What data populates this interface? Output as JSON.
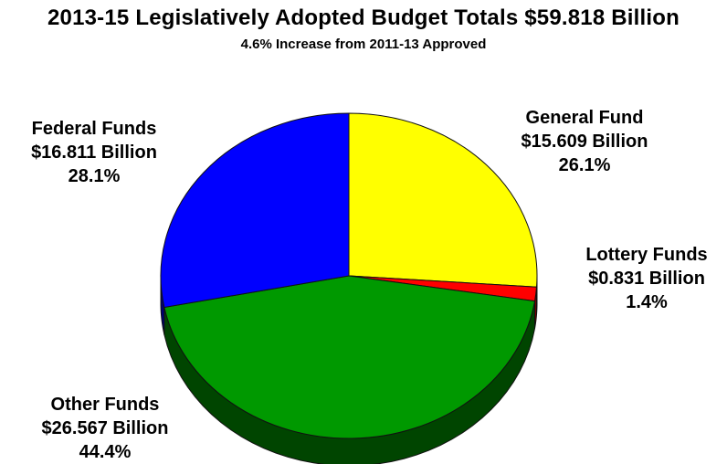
{
  "title": "2013-15 Legislatively Adopted Budget Totals $59.818 Billion",
  "subtitle": "4.6% Increase from 2011-13 Approved",
  "chart_data": {
    "type": "pie",
    "title": "2013-15 Legislatively Adopted Budget Totals $59.818 Billion",
    "subtitle": "4.6% Increase from 2011-13 Approved",
    "slices": [
      {
        "name": "General Fund",
        "amount": "$15.609 Billion",
        "value": 15.609,
        "percent": "26.1%",
        "color": "#ffff00"
      },
      {
        "name": "Lottery Funds",
        "amount": "$0.831 Billion",
        "value": 0.831,
        "percent": "1.4%",
        "color": "#ff0000"
      },
      {
        "name": "Other Funds",
        "amount": "$26.567 Billion",
        "value": 26.567,
        "percent": "44.4%",
        "color": "#009900"
      },
      {
        "name": "Federal Funds",
        "amount": "$16.811 Billion",
        "value": 16.811,
        "percent": "28.1%",
        "color": "#0000ff"
      }
    ]
  }
}
